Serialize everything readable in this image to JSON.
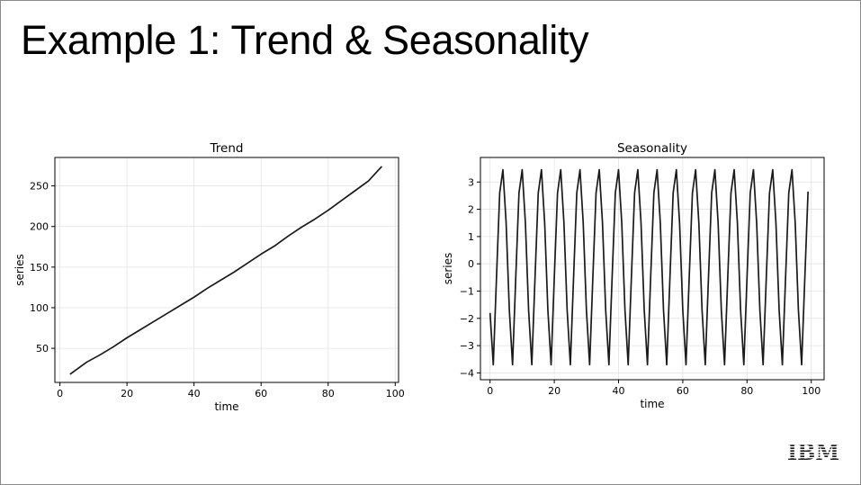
{
  "slide": {
    "title": "Example 1: Trend & Seasonality",
    "logo": "IBM"
  },
  "colors": {
    "line": "#1a1a1a",
    "grid": "#e3e3e3",
    "axis": "#000000",
    "logo": "#1f1f1f"
  },
  "chart_data": [
    {
      "type": "line",
      "title": "Trend",
      "xlabel": "time",
      "ylabel": "series",
      "xlim": [
        -1.5,
        101
      ],
      "ylim": [
        8,
        285
      ],
      "xticks": [
        0,
        20,
        40,
        60,
        80,
        100
      ],
      "yticks": [
        50,
        100,
        150,
        200,
        250
      ],
      "grid": true,
      "series": [
        {
          "x": [
            3,
            8,
            12,
            16,
            20,
            24,
            28,
            32,
            36,
            40,
            44,
            48,
            52,
            56,
            60,
            64,
            68,
            72,
            76,
            80,
            84,
            88,
            92,
            96
          ],
          "values": [
            18,
            33,
            42,
            52,
            63,
            73,
            83,
            93,
            103,
            113,
            124,
            134,
            144,
            155,
            166,
            176,
            188,
            199,
            209,
            220,
            232,
            244,
            256,
            274
          ]
        }
      ]
    },
    {
      "type": "line",
      "title": "Seasonality",
      "xlabel": "time",
      "ylabel": "series",
      "xlim": [
        -3,
        104
      ],
      "ylim": [
        -4.25,
        3.9
      ],
      "xticks": [
        0,
        20,
        40,
        60,
        80,
        100
      ],
      "yticks": [
        3,
        2,
        1,
        0,
        -1,
        -2,
        -3,
        -4
      ],
      "ytick_labels": [
        "3",
        "2",
        "1",
        "0",
        "−1",
        "−2",
        "−3",
        "−4"
      ],
      "grid": true,
      "series": [
        {
          "x": [
            0,
            1,
            2,
            3,
            4,
            5,
            6,
            7,
            8,
            9,
            10,
            11,
            12,
            13,
            14,
            15,
            16,
            17,
            18,
            19,
            20,
            21,
            22,
            23,
            24,
            25,
            26,
            27,
            28,
            29,
            30,
            31,
            32,
            33,
            34,
            35,
            36,
            37,
            38,
            39,
            40,
            41,
            42,
            43,
            44,
            45,
            46,
            47,
            48,
            49,
            50,
            51,
            52,
            53,
            54,
            55,
            56,
            57,
            58,
            59,
            60,
            61,
            62,
            63,
            64,
            65,
            66,
            67,
            68,
            69,
            70,
            71,
            72,
            73,
            74,
            75,
            76,
            77,
            78,
            79,
            80,
            81,
            82,
            83,
            84,
            85,
            86,
            87,
            88,
            89,
            90,
            91,
            92,
            93,
            94,
            95,
            96,
            97,
            98,
            99
          ],
          "values": [
            -1.8,
            -3.7,
            -0.5,
            2.6,
            3.45,
            1.5,
            -1.7,
            -3.7,
            -0.5,
            2.6,
            3.45,
            1.5,
            -1.7,
            -3.7,
            -0.5,
            2.6,
            3.45,
            1.5,
            -1.7,
            -3.7,
            -0.5,
            2.6,
            3.45,
            1.5,
            -1.7,
            -3.7,
            -0.5,
            2.6,
            3.45,
            1.5,
            -1.7,
            -3.7,
            -0.5,
            2.6,
            3.45,
            1.5,
            -1.7,
            -3.7,
            -0.5,
            2.6,
            3.45,
            1.5,
            -1.7,
            -3.7,
            -0.5,
            2.6,
            3.45,
            1.5,
            -1.7,
            -3.7,
            -0.5,
            2.6,
            3.45,
            1.5,
            -1.7,
            -3.7,
            -0.5,
            2.6,
            3.45,
            1.5,
            -1.7,
            -3.7,
            -0.5,
            2.6,
            3.45,
            1.5,
            -1.7,
            -3.7,
            -0.5,
            2.6,
            3.45,
            1.5,
            -1.7,
            -3.7,
            -0.5,
            2.6,
            3.45,
            1.5,
            -1.7,
            -3.7,
            -0.5,
            2.6,
            3.45,
            1.5,
            -1.7,
            -3.7,
            -0.5,
            2.6,
            3.45,
            1.5,
            -1.7,
            -3.7,
            -0.5,
            2.6,
            3.45,
            1.5,
            -1.7,
            -3.7,
            -0.5,
            2.65
          ]
        }
      ]
    }
  ]
}
